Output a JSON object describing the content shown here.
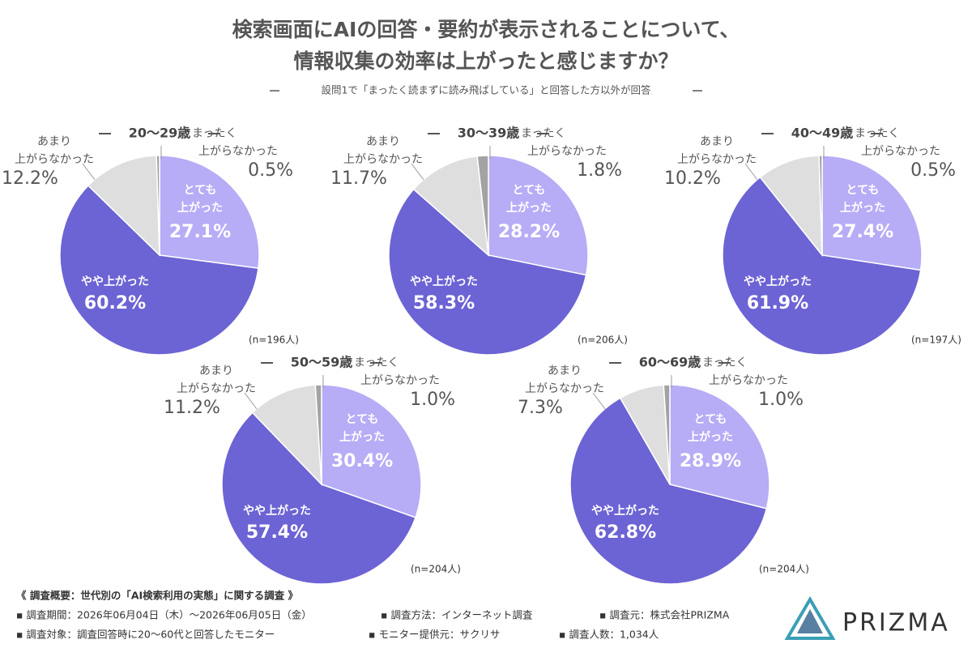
{
  "title": [
    "検索画面にAIの回答・要約が表示されることについて、",
    "情報収集の効率は上がったと感じますか？"
  ],
  "subtitle": "設問1で「まったく読まずに読み飛ばしている」と回答した方以外が回答",
  "chart_data": [
    {
      "type": "pie",
      "title": "20〜29歳",
      "n_label": "(n=196人)",
      "categories": [
        [
          "とても",
          "上がった"
        ],
        [
          "やや上がった"
        ],
        [
          "あまり",
          "上がらなかった"
        ],
        [
          "まったく",
          "上がらなかった"
        ]
      ],
      "values": [
        27.1,
        60.2,
        12.2,
        0.5
      ],
      "value_labels": [
        "27.1%",
        "60.2%",
        "12.2%",
        "0.5%"
      ],
      "colors": [
        "#b7acf6",
        "#6c63d4",
        "#dedede",
        "#a3a3a3"
      ]
    },
    {
      "type": "pie",
      "title": "30〜39歳",
      "n_label": "(n=206人)",
      "categories": [
        [
          "とても",
          "上がった"
        ],
        [
          "やや上がった"
        ],
        [
          "あまり",
          "上がらなかった"
        ],
        [
          "まったく",
          "上がらなかった"
        ]
      ],
      "values": [
        28.2,
        58.3,
        11.7,
        1.8
      ],
      "value_labels": [
        "28.2%",
        "58.3%",
        "11.7%",
        "1.8%"
      ],
      "colors": [
        "#b7acf6",
        "#6c63d4",
        "#dedede",
        "#a3a3a3"
      ]
    },
    {
      "type": "pie",
      "title": "40〜49歳",
      "n_label": "(n=197人)",
      "categories": [
        [
          "とても",
          "上がった"
        ],
        [
          "やや上がった"
        ],
        [
          "あまり",
          "上がらなかった"
        ],
        [
          "まったく",
          "上がらなかった"
        ]
      ],
      "values": [
        27.4,
        61.9,
        10.2,
        0.5
      ],
      "value_labels": [
        "27.4%",
        "61.9%",
        "10.2%",
        "0.5%"
      ],
      "colors": [
        "#b7acf6",
        "#6c63d4",
        "#dedede",
        "#a3a3a3"
      ]
    },
    {
      "type": "pie",
      "title": "50〜59歳",
      "n_label": "(n=204人)",
      "categories": [
        [
          "とても",
          "上がった"
        ],
        [
          "やや上がった"
        ],
        [
          "あまり",
          "上がらなかった"
        ],
        [
          "まったく",
          "上がらなかった"
        ]
      ],
      "values": [
        30.4,
        57.4,
        11.2,
        1.0
      ],
      "value_labels": [
        "30.4%",
        "57.4%",
        "11.2%",
        "1.0%"
      ],
      "colors": [
        "#b7acf6",
        "#6c63d4",
        "#dedede",
        "#a3a3a3"
      ]
    },
    {
      "type": "pie",
      "title": "60〜69歳",
      "n_label": "(n=204人)",
      "categories": [
        [
          "とても",
          "上がった"
        ],
        [
          "やや上がった"
        ],
        [
          "あまり",
          "上がらなかった"
        ],
        [
          "まったく",
          "上がらなかった"
        ]
      ],
      "values": [
        28.9,
        62.8,
        7.3,
        1.0
      ],
      "value_labels": [
        "28.9%",
        "62.8%",
        "7.3%",
        "1.0%"
      ],
      "colors": [
        "#b7acf6",
        "#6c63d4",
        "#dedede",
        "#a3a3a3"
      ]
    }
  ],
  "footer": [
    [
      "《 調査概要：世代別の「AI検索利用の実態」に関する調査 》"
    ],
    [
      "▪ 調査期間：2026年06月04日（木）〜2026年06月05日（金）",
      "▪ 調査方法：インターネット調査",
      "▪ 調査元：株式会社PRIZMA"
    ],
    [
      "▪ 調査対象：調査回答時に20〜60代と回答したモニター",
      "▪ モニター提供元：サクリサ",
      "▪ 調査人数：1,034人"
    ]
  ],
  "logo": "PRIZMA"
}
